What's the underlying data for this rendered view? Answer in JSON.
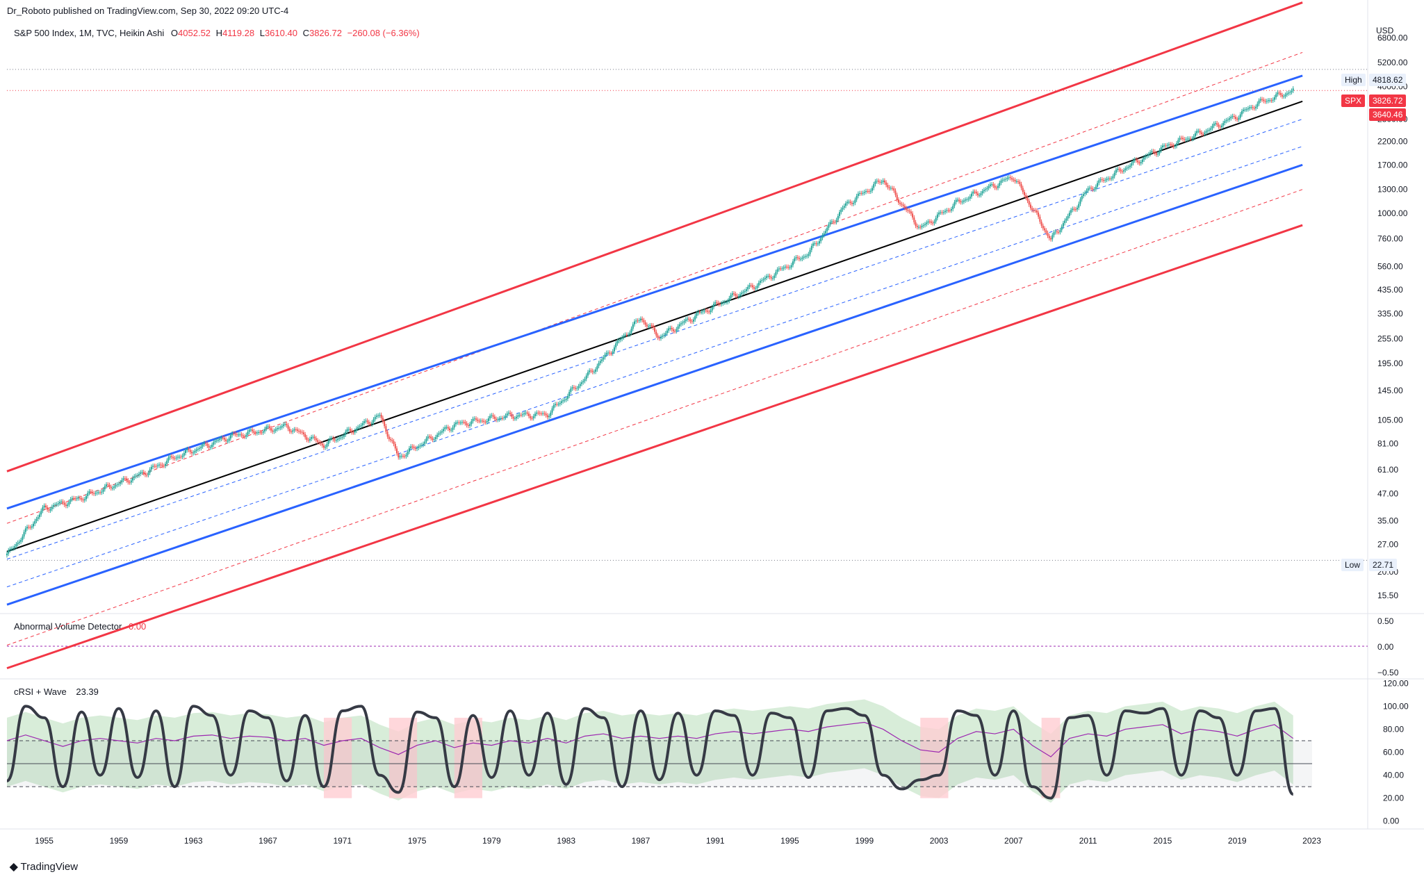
{
  "header": {
    "publisher": "Dr_Roboto published on TradingView.com, Sep 30, 2022 09:20 UTC-4",
    "symbol_line": "S&P 500 Index, 1M, TVC, Heikin Ashi",
    "ohlc": {
      "o_label": "O",
      "o": "4052.52",
      "h_label": "H",
      "h": "4119.28",
      "l_label": "L",
      "l": "3610.40",
      "c_label": "C",
      "c": "3826.72",
      "change": "−260.08 (−6.36%)"
    }
  },
  "price_axis": {
    "currency": "USD",
    "ticks": [
      "6800.00",
      "5200.00",
      "4000.00",
      "2800.00",
      "2200.00",
      "1700.00",
      "1300.00",
      "1000.00",
      "760.00",
      "560.00",
      "435.00",
      "335.00",
      "255.00",
      "195.00",
      "145.00",
      "105.00",
      "81.00",
      "61.00",
      "47.00",
      "35.00",
      "27.00",
      "20.00",
      "15.50"
    ],
    "high_label": "High",
    "high_value": "4818.62",
    "symbol_label": "SPX",
    "symbol_value": "3826.72",
    "lower_value": "3640.46",
    "low_label": "Low",
    "low_value": "22.71"
  },
  "volume_pane": {
    "title": "Abnormal Volume Detector",
    "value": "0.00",
    "ticks": [
      "0.50",
      "0.00",
      "−0.50"
    ]
  },
  "crsi_pane": {
    "title": "cRSI + Wave",
    "value": "23.39",
    "ticks": [
      "120.00",
      "100.00",
      "80.00",
      "60.00",
      "40.00",
      "20.00",
      "0.00"
    ]
  },
  "time_axis": {
    "ticks": [
      "1955",
      "1959",
      "1963",
      "1967",
      "1971",
      "1975",
      "1979",
      "1983",
      "1987",
      "1991",
      "1995",
      "1999",
      "2003",
      "2007",
      "2011",
      "2015",
      "2019",
      "2023"
    ]
  },
  "brand": "TradingView",
  "colors": {
    "up": "#26a69a",
    "down": "#ef5350",
    "channel_outer": "#f23645",
    "channel_inner": "#2962ff",
    "mid_line": "#000000",
    "crsi_line": "#363a45",
    "crsi_wave": "#9c27b0",
    "band_fill": "#c8e6c9",
    "band_fill_bear": "#ffcdd2"
  },
  "chart_data": [
    {
      "type": "line",
      "title": "S&P 500 Index, 1M, TVC, Heikin Ashi",
      "ylabel": "USD",
      "yscale": "log",
      "ylim": [
        13,
        8500
      ],
      "x": [
        1953,
        1955,
        1957,
        1960,
        1962,
        1965,
        1968,
        1970,
        1973,
        1974,
        1977,
        1980,
        1982,
        1984,
        1987,
        1988,
        1990,
        1993,
        1996,
        1998,
        2000,
        2002,
        2004,
        2007,
        2009,
        2011,
        2013,
        2015,
        2017,
        2019,
        2020,
        2022
      ],
      "series": [
        {
          "values": [
            24,
            40,
            45,
            57,
            70,
            88,
            98,
            80,
            110,
            70,
            100,
            110,
            112,
            165,
            320,
            260,
            330,
            450,
            650,
            1100,
            1450,
            850,
            1130,
            1500,
            750,
            1300,
            1650,
            2050,
            2400,
            2900,
            3300,
            3826.72
          ]
        }
      ],
      "channel_lines": [
        {
          "style": "outer",
          "x": [
            1953,
            2022.5
          ],
          "y": [
            60,
            10000
          ]
        },
        {
          "style": "outer-dashed",
          "x": [
            1953,
            2022.5
          ],
          "y": [
            34,
            5800
          ]
        },
        {
          "style": "inner",
          "x": [
            1953,
            2022.5
          ],
          "y": [
            40,
            4500
          ]
        },
        {
          "style": "inner-dashed",
          "x": [
            1953,
            2022.5
          ],
          "y": [
            23,
            2800
          ]
        },
        {
          "style": "mid",
          "x": [
            1953,
            2022.5
          ],
          "y": [
            25,
            3400
          ]
        },
        {
          "style": "inner-dashed",
          "x": [
            1953,
            2022.5
          ],
          "y": [
            17,
            2080
          ]
        },
        {
          "style": "inner",
          "x": [
            1953,
            2022.5
          ],
          "y": [
            14,
            1700
          ]
        },
        {
          "style": "outer-dashed",
          "x": [
            1953,
            2022.5
          ],
          "y": [
            9,
            1300
          ]
        },
        {
          "style": "outer",
          "x": [
            1953,
            2022.5
          ],
          "y": [
            7,
            880
          ]
        }
      ]
    },
    {
      "type": "line",
      "title": "Abnormal Volume Detector",
      "ylim": [
        -0.5,
        0.5
      ],
      "series": [
        {
          "name": "Abnormal Volume Detector",
          "values": [
            0
          ]
        }
      ]
    },
    {
      "type": "line",
      "title": "cRSI + Wave",
      "ylim": [
        -5,
        122
      ],
      "x": [
        1953,
        1954,
        1955,
        1956,
        1957,
        1958,
        1959,
        1960,
        1961,
        1962,
        1963,
        1964,
        1965,
        1966,
        1967,
        1968,
        1969,
        1970,
        1971,
        1972,
        1973,
        1974,
        1975,
        1976,
        1977,
        1978,
        1979,
        1980,
        1981,
        1982,
        1983,
        1984,
        1985,
        1986,
        1987,
        1988,
        1989,
        1990,
        1991,
        1992,
        1993,
        1994,
        1995,
        1996,
        1997,
        1998,
        1999,
        2000,
        2001,
        2002,
        2003,
        2004,
        2005,
        2006,
        2007,
        2008,
        2009,
        2010,
        2011,
        2012,
        2013,
        2014,
        2015,
        2016,
        2017,
        2018,
        2019,
        2020,
        2021,
        2022
      ],
      "series": [
        {
          "name": "cRSI",
          "values": [
            35,
            100,
            90,
            30,
            95,
            40,
            98,
            38,
            96,
            30,
            100,
            92,
            40,
            96,
            90,
            35,
            92,
            30,
            96,
            100,
            40,
            25,
            95,
            90,
            30,
            92,
            38,
            96,
            40,
            94,
            32,
            98,
            90,
            30,
            96,
            36,
            94,
            40,
            96,
            92,
            40,
            94,
            90,
            38,
            96,
            98,
            92,
            40,
            28,
            36,
            40,
            96,
            92,
            40,
            96,
            30,
            20,
            90,
            92,
            40,
            96,
            94,
            98,
            40,
            96,
            90,
            40,
            96,
            98,
            23.39
          ]
        },
        {
          "name": "Wave",
          "values": [
            70,
            75,
            70,
            65,
            70,
            72,
            70,
            68,
            72,
            70,
            74,
            75,
            72,
            74,
            73,
            70,
            72,
            66,
            70,
            72,
            64,
            58,
            66,
            70,
            64,
            68,
            66,
            70,
            68,
            72,
            68,
            74,
            76,
            72,
            74,
            72,
            74,
            72,
            76,
            78,
            76,
            78,
            80,
            78,
            82,
            84,
            86,
            80,
            70,
            62,
            60,
            72,
            78,
            76,
            80,
            66,
            56,
            72,
            76,
            74,
            80,
            82,
            84,
            76,
            80,
            78,
            74,
            80,
            84,
            72
          ]
        }
      ]
    }
  ]
}
